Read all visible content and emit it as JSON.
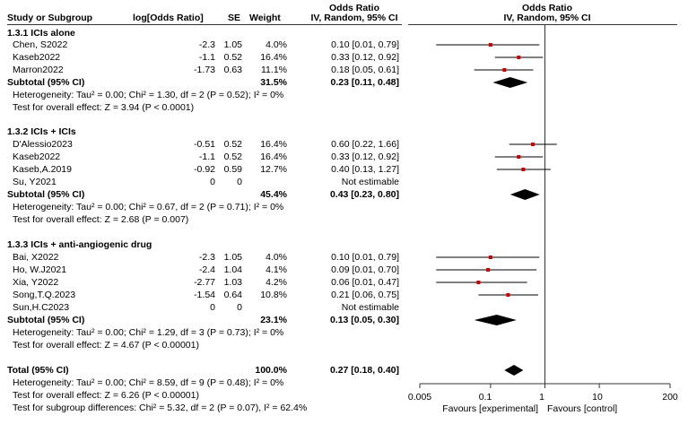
{
  "header": {
    "study": "Study or Subgroup",
    "log_or": "log[Odds Ratio]",
    "se": "SE",
    "weight": "Weight",
    "or_title": "Odds Ratio",
    "or_method": "IV, Random, 95% CI",
    "plot_title": "Odds Ratio",
    "plot_method": "IV, Random, 95% CI"
  },
  "axis": {
    "ticks": [
      "0.005",
      "0.1",
      "1",
      "10",
      "200"
    ],
    "favours_left": "Favours [experimental]",
    "favours_right": "Favours [control]"
  },
  "groups": [
    {
      "title": "1.3.1 ICIs alone",
      "studies": [
        {
          "name": "Chen, S2022",
          "log": "-2.3",
          "se": "1.05",
          "weight": "4.0%",
          "ci": "0.10 [0.01, 0.79]"
        },
        {
          "name": "Kaseb2022",
          "log": "-1.1",
          "se": "0.52",
          "weight": "16.4%",
          "ci": "0.33 [0.12, 0.92]"
        },
        {
          "name": "Marron2022",
          "log": "-1.73",
          "se": "0.63",
          "weight": "11.1%",
          "ci": "0.18 [0.05, 0.61]"
        }
      ],
      "subtotal": {
        "label": "Subtotal (95% CI)",
        "weight": "31.5%",
        "ci": "0.23 [0.11, 0.48]"
      },
      "heterogeneity": "Heterogeneity: Tau² = 0.00; Chi² = 1.30, df = 2 (P = 0.52); I² = 0%",
      "overall": "Test for overall effect: Z = 3.94 (P < 0.0001)"
    },
    {
      "title": "1.3.2 ICIs + ICIs",
      "studies": [
        {
          "name": "D'Alessio2023",
          "log": "-0.51",
          "se": "0.52",
          "weight": "16.4%",
          "ci": "0.60 [0.22, 1.66]"
        },
        {
          "name": "Kaseb2022",
          "log": "-1.1",
          "se": "0.52",
          "weight": "16.4%",
          "ci": "0.33 [0.12, 0.92]"
        },
        {
          "name": "Kaseb,A.2019",
          "log": "-0.92",
          "se": "0.59",
          "weight": "12.7%",
          "ci": "0.40 [0.13, 1.27]"
        },
        {
          "name": "Su, Y2021",
          "log": "0",
          "se": "0",
          "weight": "",
          "ci": "Not estimable"
        }
      ],
      "subtotal": {
        "label": "Subtotal (95% CI)",
        "weight": "45.4%",
        "ci": "0.43 [0.23, 0.80]"
      },
      "heterogeneity": "Heterogeneity: Tau² = 0.00; Chi² = 0.67, df = 2 (P = 0.71); I² = 0%",
      "overall": "Test for overall effect: Z = 2.68 (P = 0.007)"
    },
    {
      "title": "1.3.3 ICIs + anti-angiogenic drug",
      "studies": [
        {
          "name": "Bai, X2022",
          "log": "-2.3",
          "se": "1.05",
          "weight": "4.0%",
          "ci": "0.10 [0.01, 0.79]"
        },
        {
          "name": "Ho, W.J2021",
          "log": "-2.4",
          "se": "1.04",
          "weight": "4.1%",
          "ci": "0.09 [0.01, 0.70]"
        },
        {
          "name": "Xia, Y2022",
          "log": "-2.77",
          "se": "1.03",
          "weight": "4.2%",
          "ci": "0.06 [0.01, 0.47]"
        },
        {
          "name": "Song,T.Q.2023",
          "log": "-1.54",
          "se": "0.64",
          "weight": "10.8%",
          "ci": "0.21 [0.06, 0.75]"
        },
        {
          "name": "Sun,H.C2023",
          "log": "0",
          "se": "0",
          "weight": "",
          "ci": "Not estimable"
        }
      ],
      "subtotal": {
        "label": "Subtotal (95% CI)",
        "weight": "23.1%",
        "ci": "0.13 [0.05, 0.30]"
      },
      "heterogeneity": "Heterogeneity: Tau² = 0.00; Chi² = 1.29, df = 3 (P = 0.73); I² = 0%",
      "overall": "Test for overall effect: Z = 4.67 (P < 0.00001)"
    }
  ],
  "total": {
    "label": "Total (95% CI)",
    "weight": "100.0%",
    "ci": "0.27 [0.18, 0.40]",
    "heterogeneity": "Heterogeneity: Tau² = 0.00; Chi² = 8.59, df = 9 (P = 0.48); I² = 0%",
    "overall": "Test for overall effect: Z = 6.26 (P < 0.00001)",
    "subgroup": "Test for subgroup differences: Chi² = 5.32, df = 2 (P = 0.07), I² = 62.4%"
  },
  "colors": {
    "study_marker": "#cc0000",
    "diamond": "#000000",
    "line": "#000000"
  },
  "chart_data": {
    "type": "forest",
    "x_scale": "log",
    "xlim": [
      0.005,
      200
    ],
    "null_line": 1,
    "series": [
      {
        "name": "1.3.1 ICIs alone",
        "studies": [
          {
            "label": "Chen, S2022",
            "or": 0.1,
            "lo": 0.01,
            "hi": 0.79
          },
          {
            "label": "Kaseb2022",
            "or": 0.33,
            "lo": 0.12,
            "hi": 0.92
          },
          {
            "label": "Marron2022",
            "or": 0.18,
            "lo": 0.05,
            "hi": 0.61
          }
        ],
        "subtotal": {
          "or": 0.23,
          "lo": 0.11,
          "hi": 0.48
        }
      },
      {
        "name": "1.3.2 ICIs + ICIs",
        "studies": [
          {
            "label": "D'Alessio2023",
            "or": 0.6,
            "lo": 0.22,
            "hi": 1.66
          },
          {
            "label": "Kaseb2022",
            "or": 0.33,
            "lo": 0.12,
            "hi": 0.92
          },
          {
            "label": "Kaseb,A.2019",
            "or": 0.4,
            "lo": 0.13,
            "hi": 1.27
          },
          {
            "label": "Su, Y2021",
            "or": null,
            "lo": null,
            "hi": null
          }
        ],
        "subtotal": {
          "or": 0.43,
          "lo": 0.23,
          "hi": 0.8
        }
      },
      {
        "name": "1.3.3 ICIs + anti-angiogenic drug",
        "studies": [
          {
            "label": "Bai, X2022",
            "or": 0.1,
            "lo": 0.01,
            "hi": 0.79
          },
          {
            "label": "Ho, W.J2021",
            "or": 0.09,
            "lo": 0.01,
            "hi": 0.7
          },
          {
            "label": "Xia, Y2022",
            "or": 0.06,
            "lo": 0.01,
            "hi": 0.47
          },
          {
            "label": "Song,T.Q.2023",
            "or": 0.21,
            "lo": 0.06,
            "hi": 0.75
          },
          {
            "label": "Sun,H.C2023",
            "or": null,
            "lo": null,
            "hi": null
          }
        ],
        "subtotal": {
          "or": 0.13,
          "lo": 0.05,
          "hi": 0.3
        }
      }
    ],
    "total": {
      "or": 0.27,
      "lo": 0.18,
      "hi": 0.4
    }
  }
}
